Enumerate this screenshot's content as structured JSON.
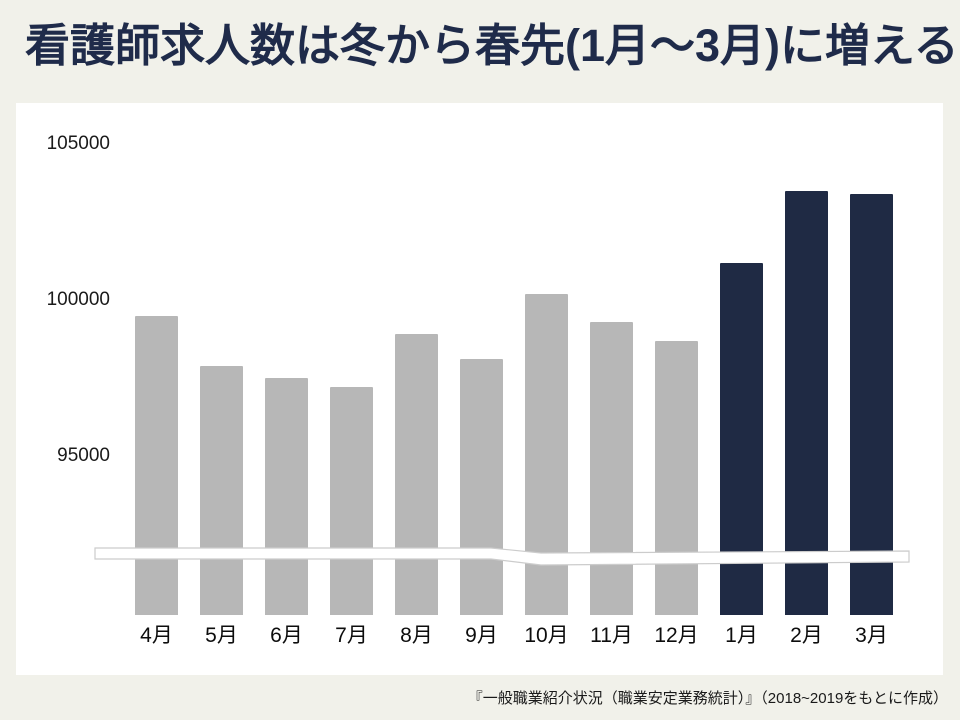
{
  "page": {
    "background": "#f1f1ea",
    "title": "看護師求人数は冬から春先(1月～3月)に増える",
    "title_color": "#1f2b4a",
    "source_note": "『一般職業紹介状況（職業安定業務統計）』（2018~2019をもとに作成）"
  },
  "chart_data": {
    "type": "bar",
    "title": "看護師求人数は冬から春先(1月～3月)に増える",
    "xlabel": "",
    "ylabel": "",
    "categories": [
      "4月",
      "5月",
      "6月",
      "7月",
      "8月",
      "9月",
      "10月",
      "11月",
      "12月",
      "1月",
      "2月",
      "3月"
    ],
    "values": [
      99500,
      97900,
      97500,
      97200,
      98900,
      98100,
      100200,
      99300,
      98700,
      101200,
      103500,
      103400
    ],
    "yticks": [
      105000,
      100000,
      95000
    ],
    "ylim": [
      95000,
      105000
    ],
    "axis_break": true,
    "grid": false,
    "legend": false,
    "highlight_categories": [
      "1月",
      "2月",
      "3月"
    ],
    "colors": {
      "default_bar": "#b7b7b7",
      "highlight_bar": "#1f2a44",
      "axis_text": "#1a1a1a",
      "panel_background": "#ffffff",
      "break_band_fill": "#ffffff",
      "break_band_stroke": "#cccccc"
    }
  }
}
